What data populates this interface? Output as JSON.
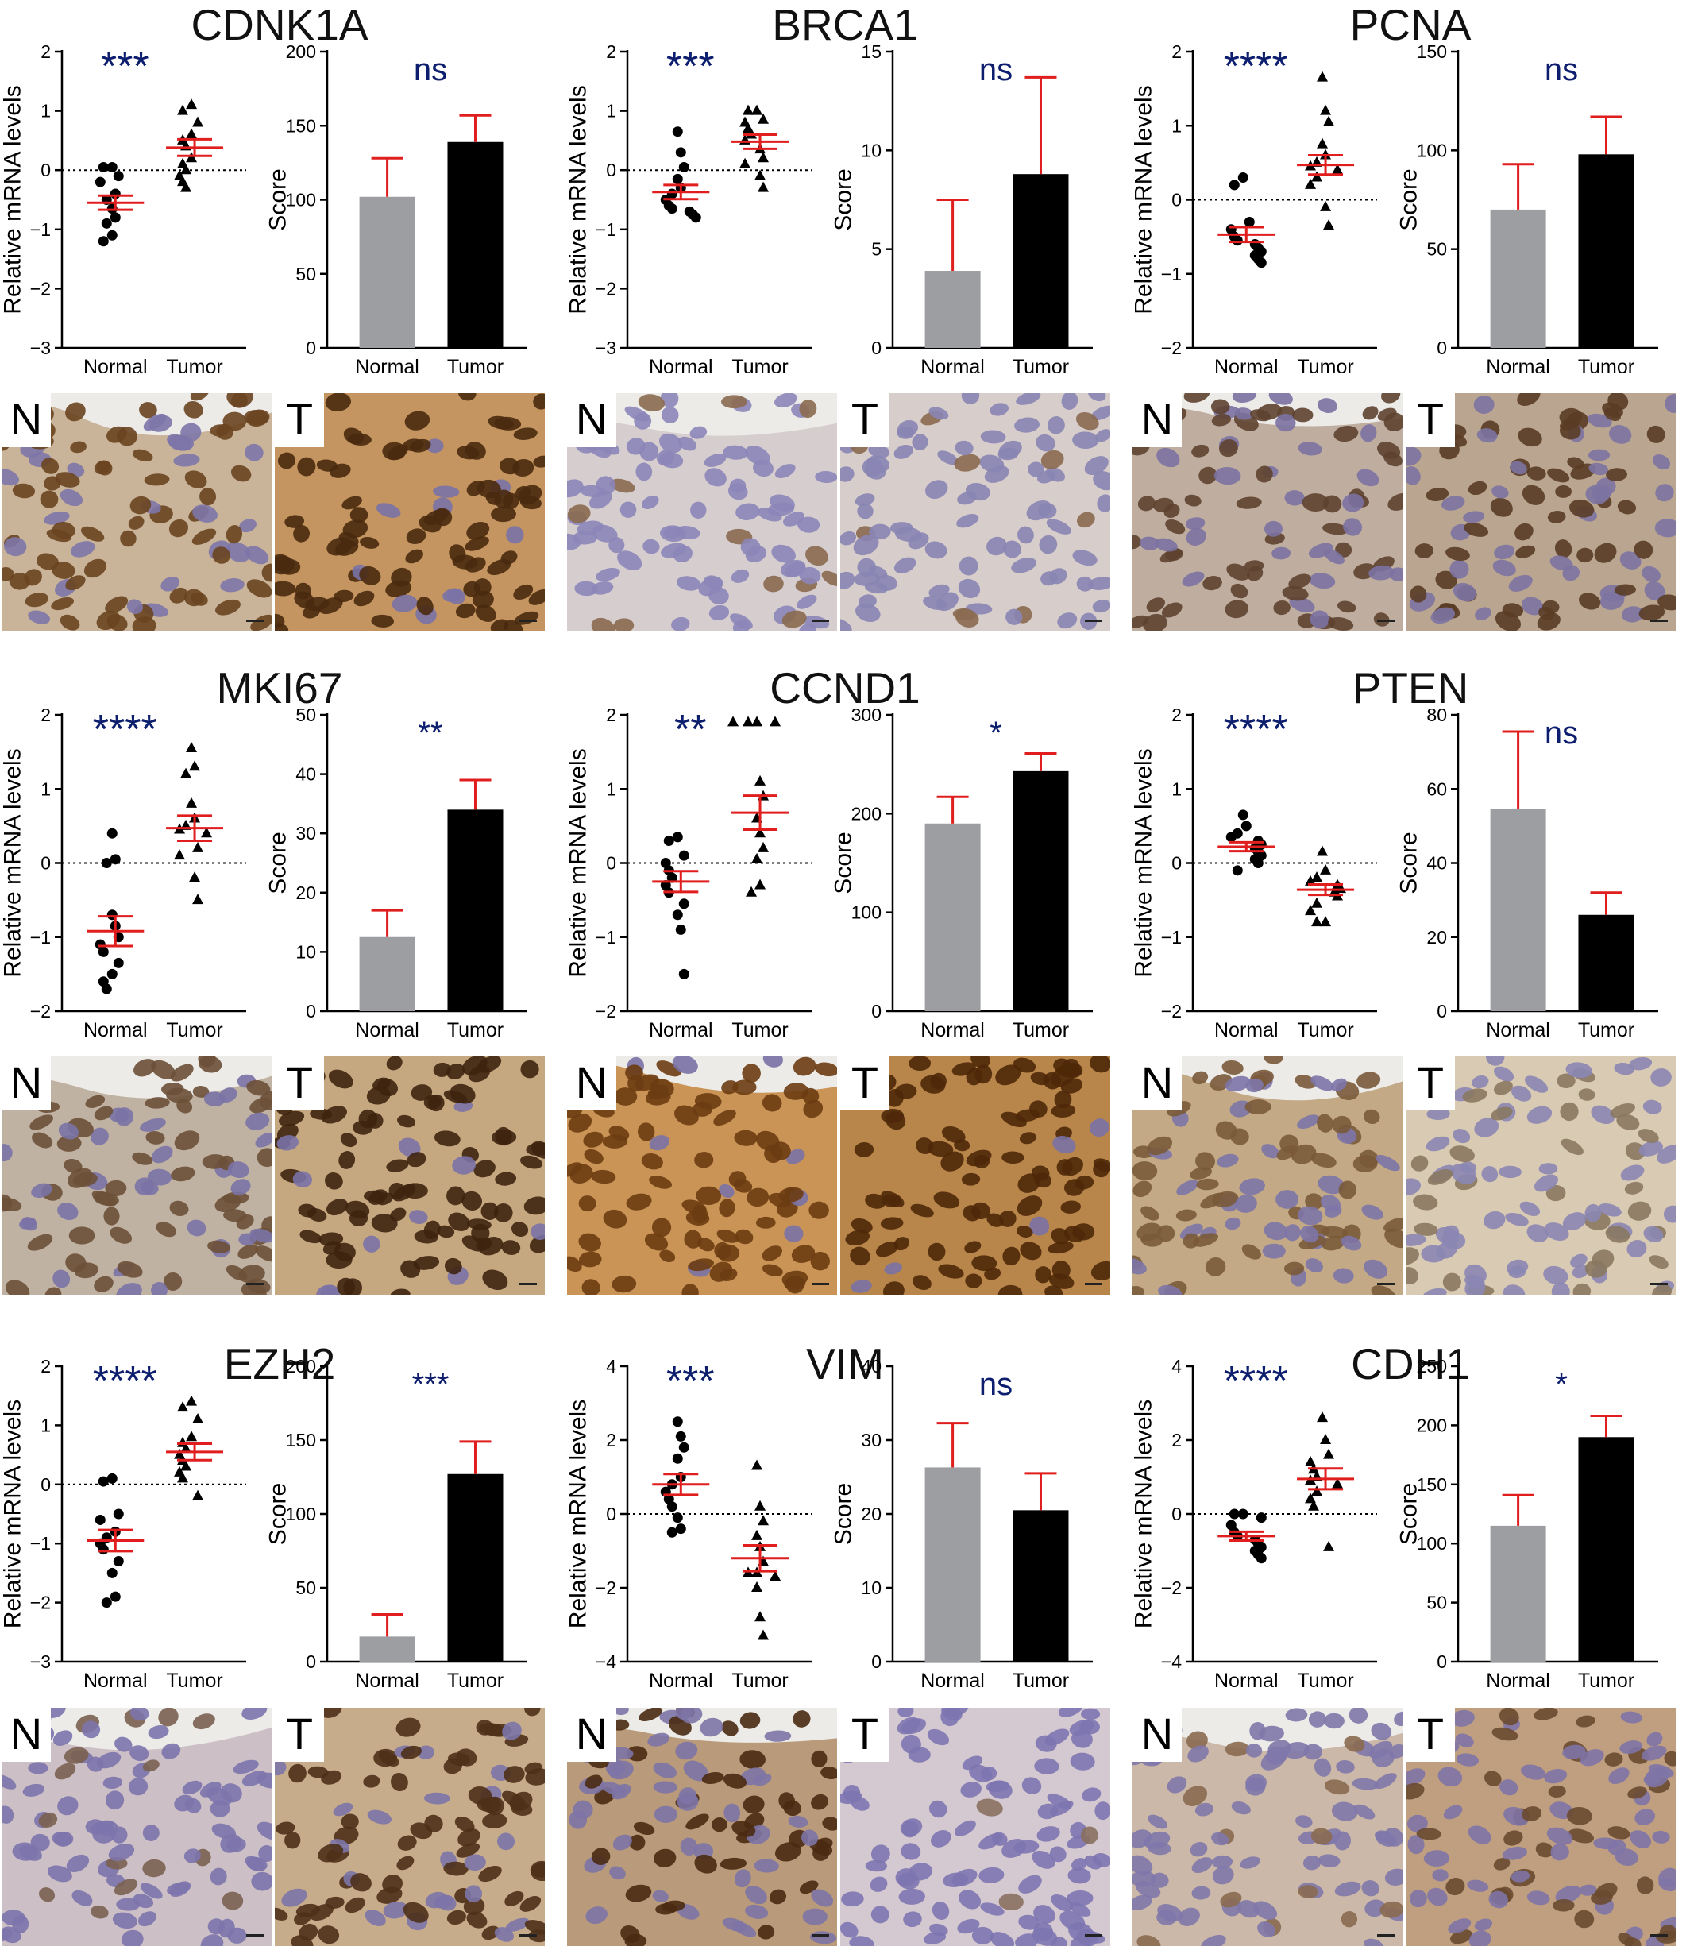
{
  "colors": {
    "gray_bar": "#9d9ea2",
    "black_bar": "#000000",
    "error": "#e01e1e",
    "sig": "#0d1e6e"
  },
  "labels": {
    "ylabel_mrna": "Relative mRNA levels",
    "ylabel_score": "Score",
    "n_letter": "N",
    "t_letter": "T"
  },
  "chart_data": [
    {
      "gene": "CDNK1A",
      "mrna": {
        "type": "scatter",
        "categories": [
          "Normal",
          "Tumor"
        ],
        "ylim": [
          -3,
          2
        ],
        "yticks": [
          -3,
          -2,
          -1,
          0,
          1,
          2
        ],
        "significance": "***",
        "normal": {
          "points": [
            0.05,
            0.05,
            -0.1,
            -0.2,
            -0.4,
            -0.5,
            -0.65,
            -0.8,
            -0.9,
            -1.1,
            -1.2
          ],
          "mean": -0.55,
          "sem": 0.12
        },
        "tumor": {
          "points": [
            1.1,
            1.0,
            0.8,
            0.6,
            0.5,
            0.4,
            0.2,
            0.1,
            0.0,
            -0.1,
            -0.2,
            -0.3
          ],
          "mean": 0.38,
          "sem": 0.14
        }
      },
      "score": {
        "type": "bar",
        "categories": [
          "Normal",
          "Tumor"
        ],
        "ylim": [
          0,
          200
        ],
        "yticks": [
          0,
          50,
          100,
          150,
          200
        ],
        "values": [
          102,
          139
        ],
        "errors": [
          26,
          18
        ],
        "significance": "ns"
      }
    },
    {
      "gene": "BRCA1",
      "mrna": {
        "type": "scatter",
        "categories": [
          "Normal",
          "Tumor"
        ],
        "ylim": [
          -3,
          2
        ],
        "yticks": [
          -3,
          -2,
          -1,
          0,
          1,
          2
        ],
        "significance": "***",
        "normal": {
          "points": [
            0.65,
            0.3,
            0.05,
            -0.15,
            -0.3,
            -0.4,
            -0.5,
            -0.6,
            -0.65,
            -0.7,
            -0.75,
            -0.8
          ],
          "mean": -0.37,
          "sem": 0.12
        },
        "tumor": {
          "points": [
            1.0,
            1.0,
            0.85,
            0.8,
            0.7,
            0.6,
            0.5,
            0.35,
            0.2,
            0.1,
            -0.1,
            -0.3
          ],
          "mean": 0.48,
          "sem": 0.12
        }
      },
      "score": {
        "type": "bar",
        "categories": [
          "Normal",
          "Tumor"
        ],
        "ylim": [
          0,
          15
        ],
        "yticks": [
          0,
          5,
          10,
          15
        ],
        "values": [
          3.9,
          8.8
        ],
        "errors": [
          3.6,
          4.9
        ],
        "significance": "ns"
      }
    },
    {
      "gene": "PCNA",
      "mrna": {
        "type": "scatter",
        "categories": [
          "Normal",
          "Tumor"
        ],
        "ylim": [
          -2,
          2
        ],
        "yticks": [
          -2,
          -1,
          0,
          1,
          2
        ],
        "significance": "****",
        "normal": {
          "points": [
            0.3,
            0.2,
            -0.3,
            -0.4,
            -0.5,
            -0.55,
            -0.6,
            -0.65,
            -0.7,
            -0.75,
            -0.8,
            -0.85
          ],
          "mean": -0.47,
          "sem": 0.1
        },
        "tumor": {
          "points": [
            1.65,
            1.2,
            1.05,
            0.75,
            0.6,
            0.5,
            0.45,
            0.4,
            0.3,
            0.2,
            -0.1,
            -0.35
          ],
          "mean": 0.47,
          "sem": 0.13
        }
      },
      "score": {
        "type": "bar",
        "categories": [
          "Normal",
          "Tumor"
        ],
        "ylim": [
          0,
          150
        ],
        "yticks": [
          0,
          50,
          100,
          150
        ],
        "values": [
          70,
          98
        ],
        "errors": [
          23,
          19
        ],
        "significance": "ns"
      }
    },
    {
      "gene": "MKI67",
      "mrna": {
        "type": "scatter",
        "categories": [
          "Normal",
          "Tumor"
        ],
        "ylim": [
          -2,
          2
        ],
        "yticks": [
          -2,
          -1,
          0,
          1,
          2
        ],
        "significance": "****",
        "normal": {
          "points": [
            0.4,
            0.05,
            0.0,
            -0.7,
            -0.85,
            -1.0,
            -1.1,
            -1.2,
            -1.35,
            -1.5,
            -1.6,
            -1.7
          ],
          "mean": -0.92,
          "sem": 0.2
        },
        "tumor": {
          "points": [
            1.55,
            1.3,
            1.2,
            0.8,
            0.6,
            0.5,
            0.45,
            0.4,
            0.2,
            0.1,
            -0.2,
            -0.5
          ],
          "mean": 0.47,
          "sem": 0.17
        }
      },
      "score": {
        "type": "bar",
        "categories": [
          "Normal",
          "Tumor"
        ],
        "ylim": [
          0,
          50
        ],
        "yticks": [
          0,
          10,
          20,
          30,
          40,
          50
        ],
        "values": [
          12.5,
          34
        ],
        "errors": [
          4.5,
          5
        ],
        "significance": "**"
      }
    },
    {
      "gene": "CCND1",
      "mrna": {
        "type": "scatter",
        "categories": [
          "Normal",
          "Tumor"
        ],
        "ylim": [
          -2,
          2
        ],
        "yticks": [
          -2,
          -1,
          0,
          1,
          2
        ],
        "significance": "**",
        "normal": {
          "points": [
            0.35,
            0.3,
            0.1,
            0.0,
            -0.1,
            -0.2,
            -0.3,
            -0.4,
            -0.55,
            -0.7,
            -0.9,
            -1.5
          ],
          "mean": -0.25,
          "sem": 0.14
        },
        "tumor": {
          "points": [
            1.9,
            1.9,
            1.9,
            1.9,
            1.1,
            0.9,
            0.6,
            0.4,
            0.2,
            0.05,
            -0.3,
            -0.4
          ],
          "mean": 0.68,
          "sem": 0.23
        }
      },
      "score": {
        "type": "bar",
        "categories": [
          "Normal",
          "Tumor"
        ],
        "ylim": [
          0,
          300
        ],
        "yticks": [
          0,
          100,
          200,
          300
        ],
        "values": [
          190,
          243
        ],
        "errors": [
          27,
          18
        ],
        "significance": "*"
      }
    },
    {
      "gene": "PTEN",
      "mrna": {
        "type": "scatter",
        "categories": [
          "Normal",
          "Tumor"
        ],
        "ylim": [
          -2,
          2
        ],
        "yticks": [
          -2,
          -1,
          0,
          1,
          2
        ],
        "significance": "****",
        "normal": {
          "points": [
            0.65,
            0.5,
            0.4,
            0.35,
            0.3,
            0.25,
            0.2,
            0.15,
            0.1,
            0.05,
            0.0,
            -0.1
          ],
          "mean": 0.22,
          "sem": 0.06
        },
        "tumor": {
          "points": [
            0.15,
            -0.1,
            -0.2,
            -0.25,
            -0.3,
            -0.35,
            -0.4,
            -0.45,
            -0.55,
            -0.65,
            -0.8,
            -0.8
          ],
          "mean": -0.36,
          "sem": 0.07
        }
      },
      "score": {
        "type": "bar",
        "categories": [
          "Normal",
          "Tumor"
        ],
        "ylim": [
          0,
          80
        ],
        "yticks": [
          0,
          20,
          40,
          60,
          80
        ],
        "values": [
          54.5,
          26
        ],
        "errors": [
          21,
          6
        ],
        "significance": "ns"
      }
    },
    {
      "gene": "EZH2",
      "mrna": {
        "type": "scatter",
        "categories": [
          "Normal",
          "Tumor"
        ],
        "ylim": [
          -3,
          2
        ],
        "yticks": [
          -3,
          -2,
          -1,
          0,
          1,
          2
        ],
        "significance": "****",
        "normal": {
          "points": [
            0.1,
            0.05,
            -0.5,
            -0.6,
            -0.8,
            -0.9,
            -1.0,
            -1.1,
            -1.3,
            -1.5,
            -1.9,
            -2.0
          ],
          "mean": -0.95,
          "sem": 0.18
        },
        "tumor": {
          "points": [
            1.4,
            1.3,
            1.1,
            0.8,
            0.7,
            0.6,
            0.5,
            0.4,
            0.3,
            0.2,
            0.1,
            -0.2
          ],
          "mean": 0.55,
          "sem": 0.14
        }
      },
      "score": {
        "type": "bar",
        "categories": [
          "Normal",
          "Tumor"
        ],
        "ylim": [
          0,
          200
        ],
        "yticks": [
          0,
          50,
          100,
          150,
          200
        ],
        "values": [
          17,
          127
        ],
        "errors": [
          15,
          22
        ],
        "significance": "***"
      }
    },
    {
      "gene": "VIM",
      "mrna": {
        "type": "scatter",
        "categories": [
          "Normal",
          "Tumor"
        ],
        "ylim": [
          -4,
          4
        ],
        "yticks": [
          -4,
          -2,
          0,
          2,
          4
        ],
        "significance": "***",
        "normal": {
          "points": [
            2.5,
            2.1,
            1.8,
            1.5,
            1.0,
            0.8,
            0.6,
            0.4,
            0.2,
            -0.1,
            -0.4,
            -0.5
          ],
          "mean": 0.8,
          "sem": 0.28
        },
        "tumor": {
          "points": [
            1.3,
            0.2,
            -0.2,
            -0.6,
            -0.9,
            -1.3,
            -1.6,
            -1.6,
            -1.7,
            -2.0,
            -2.8,
            -3.3
          ],
          "mean": -1.2,
          "sem": 0.35
        }
      },
      "score": {
        "type": "bar",
        "categories": [
          "Normal",
          "Tumor"
        ],
        "ylim": [
          0,
          40
        ],
        "yticks": [
          0,
          10,
          20,
          30,
          40
        ],
        "values": [
          26.3,
          20.5
        ],
        "errors": [
          6,
          5
        ],
        "significance": "ns"
      }
    },
    {
      "gene": "CDH1",
      "mrna": {
        "type": "scatter",
        "categories": [
          "Normal",
          "Tumor"
        ],
        "ylim": [
          -4,
          4
        ],
        "yticks": [
          -4,
          -2,
          0,
          2,
          4
        ],
        "significance": "****",
        "normal": {
          "points": [
            0.0,
            0.0,
            -0.1,
            -0.3,
            -0.5,
            -0.6,
            -0.7,
            -0.8,
            -0.9,
            -1.0,
            -1.1,
            -1.2
          ],
          "mean": -0.6,
          "sem": 0.12
        },
        "tumor": {
          "points": [
            2.6,
            2.0,
            1.6,
            1.4,
            1.2,
            1.0,
            0.9,
            0.8,
            0.6,
            0.4,
            0.2,
            -0.9
          ],
          "mean": 0.95,
          "sem": 0.28
        }
      },
      "score": {
        "type": "bar",
        "categories": [
          "Normal",
          "Tumor"
        ],
        "ylim": [
          0,
          250
        ],
        "yticks": [
          0,
          50,
          100,
          150,
          200,
          250
        ],
        "values": [
          115,
          190
        ],
        "errors": [
          26,
          18
        ],
        "significance": "*"
      }
    }
  ]
}
